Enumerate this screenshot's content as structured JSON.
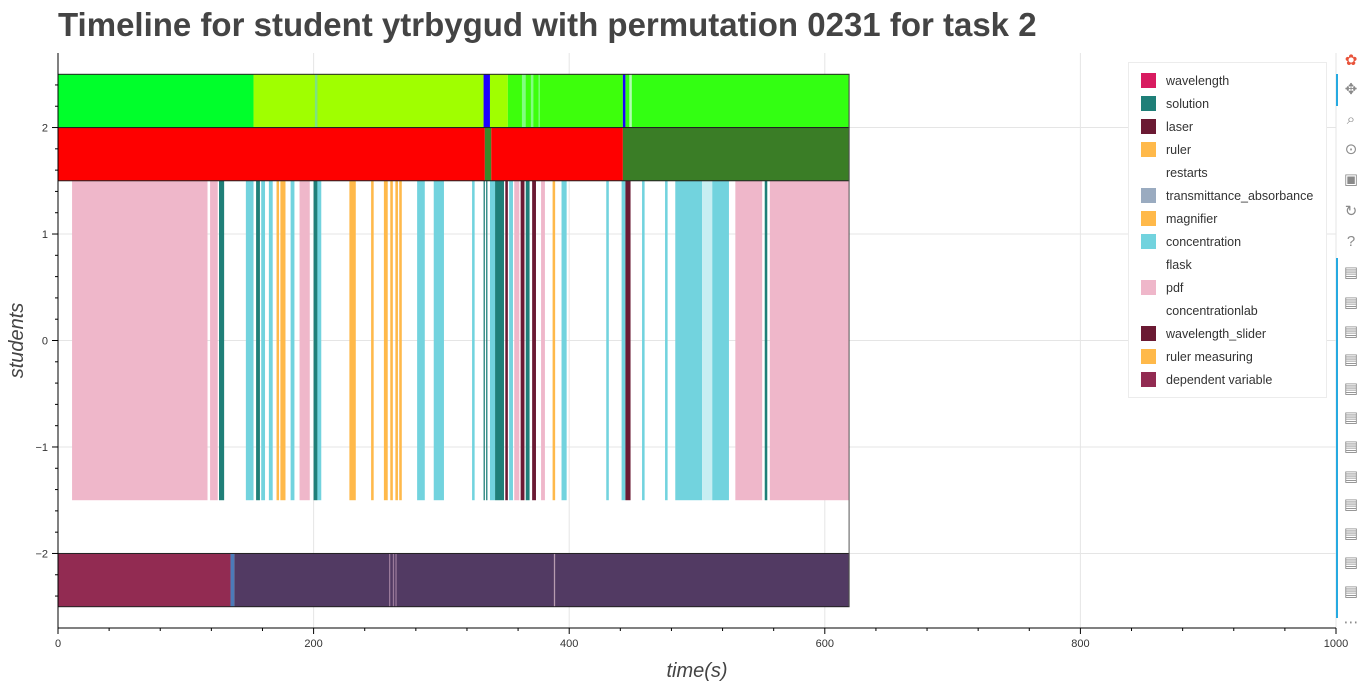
{
  "chart_data": {
    "type": "timeline",
    "title": "Timeline for student ytrbygud with permutation 0231 for task 2",
    "xlabel": "time(s)",
    "ylabel": "students",
    "xlim": [
      0,
      1000
    ],
    "ylim": [
      -2.7,
      2.7
    ],
    "x_ticks": [
      0,
      200,
      400,
      600,
      800,
      1000
    ],
    "y_ticks": [
      2,
      1,
      0,
      -1,
      -2
    ],
    "x_tick_labels": [
      "0",
      "200",
      "400",
      "600",
      "800",
      "1000"
    ],
    "y_tick_labels": [
      "2",
      "1",
      "0",
      "−1",
      "−2"
    ],
    "grid": true,
    "legend_position": "top-right",
    "legend": [
      {
        "label": "wavelength",
        "color": "#d81b60"
      },
      {
        "label": "solution",
        "color": "#1f7f78"
      },
      {
        "label": "laser",
        "color": "#6b1a33"
      },
      {
        "label": "ruler",
        "color": "#ffb94a"
      },
      {
        "label": "restarts",
        "color": "#ffffff"
      },
      {
        "label": "transmittance_absorbance",
        "color": "#9aabc0"
      },
      {
        "label": "magnifier",
        "color": "#ffb94a"
      },
      {
        "label": "concentration",
        "color": "#72d3de"
      },
      {
        "label": "flask",
        "color": "#ffffff"
      },
      {
        "label": "pdf",
        "color": "#efb7ca"
      },
      {
        "label": "concentrationlab",
        "color": "#ffffff"
      },
      {
        "label": "wavelength_slider",
        "color": "#6b1a33"
      },
      {
        "label": "ruler measuring",
        "color": "#ffb94a"
      },
      {
        "label": "dependent variable",
        "color": "#922b52"
      }
    ],
    "rows": [
      {
        "name": "top",
        "y_range": [
          2.0,
          2.5
        ],
        "segments": [
          {
            "x0": 0,
            "x1": 153,
            "color": "#00ff2b"
          },
          {
            "x0": 153,
            "x1": 333,
            "color": "#a0ff00"
          },
          {
            "x0": 333,
            "x1": 338,
            "color": "#1c00ff"
          },
          {
            "x0": 338,
            "x1": 352,
            "color": "#a0ff00"
          },
          {
            "x0": 352,
            "x1": 442,
            "color": "#3dff0c"
          },
          {
            "x0": 442,
            "x1": 444,
            "color": "#1c00ff"
          },
          {
            "x0": 444,
            "x1": 619,
            "color": "#33ff12"
          },
          {
            "x0": 201,
            "x1": 203,
            "color": "#7ee37e"
          },
          {
            "x0": 363,
            "x1": 366,
            "color": "#80ff80"
          },
          {
            "x0": 370,
            "x1": 372,
            "color": "#80ff80"
          },
          {
            "x0": 376,
            "x1": 377,
            "color": "#80ff80"
          },
          {
            "x0": 447,
            "x1": 449,
            "color": "#b0ffb0"
          }
        ]
      },
      {
        "name": "mid",
        "y_range": [
          1.5,
          2.0
        ],
        "segments": [
          {
            "x0": 0,
            "x1": 334,
            "color": "#fe0000"
          },
          {
            "x0": 334,
            "x1": 339,
            "color": "#3a8a2a"
          },
          {
            "x0": 339,
            "x1": 442,
            "color": "#fe0000"
          },
          {
            "x0": 442,
            "x1": 619,
            "color": "#3a7d26"
          }
        ]
      },
      {
        "name": "events",
        "y_range": [
          -1.5,
          1.5
        ],
        "segments": [
          {
            "x0": 11,
            "x1": 117,
            "color": "#efb7ca"
          },
          {
            "x0": 119,
            "x1": 125,
            "color": "#efb7ca"
          },
          {
            "x0": 126,
            "x1": 130,
            "color": "#1f7f78"
          },
          {
            "x0": 147,
            "x1": 153,
            "color": "#72d3de"
          },
          {
            "x0": 155,
            "x1": 158,
            "color": "#1f7f78"
          },
          {
            "x0": 159,
            "x1": 162,
            "color": "#72d3de"
          },
          {
            "x0": 165,
            "x1": 168,
            "color": "#72d3de"
          },
          {
            "x0": 171,
            "x1": 173,
            "color": "#ffb94a"
          },
          {
            "x0": 174,
            "x1": 178,
            "color": "#ffb94a"
          },
          {
            "x0": 182,
            "x1": 185,
            "color": "#72d3de"
          },
          {
            "x0": 189,
            "x1": 197,
            "color": "#efb7ca"
          },
          {
            "x0": 200,
            "x1": 203,
            "color": "#1f7f78"
          },
          {
            "x0": 203,
            "x1": 206,
            "color": "#72d3de"
          },
          {
            "x0": 228,
            "x1": 233,
            "color": "#ffb94a"
          },
          {
            "x0": 245,
            "x1": 247,
            "color": "#ffb94a"
          },
          {
            "x0": 255,
            "x1": 258,
            "color": "#ffb94a"
          },
          {
            "x0": 260,
            "x1": 262,
            "color": "#ffb94a"
          },
          {
            "x0": 264,
            "x1": 266,
            "color": "#ffb94a"
          },
          {
            "x0": 267,
            "x1": 269,
            "color": "#ffb94a"
          },
          {
            "x0": 281,
            "x1": 287,
            "color": "#72d3de"
          },
          {
            "x0": 294,
            "x1": 302,
            "color": "#72d3de"
          },
          {
            "x0": 324,
            "x1": 326,
            "color": "#72d3de"
          },
          {
            "x0": 333,
            "x1": 334,
            "color": "#1f7f78"
          },
          {
            "x0": 335,
            "x1": 336,
            "color": "#1f7f78"
          },
          {
            "x0": 338,
            "x1": 342,
            "color": "#72d3de"
          },
          {
            "x0": 342,
            "x1": 349,
            "color": "#1f7f78"
          },
          {
            "x0": 350,
            "x1": 352,
            "color": "#6b1a33"
          },
          {
            "x0": 353,
            "x1": 356,
            "color": "#72d3de"
          },
          {
            "x0": 357,
            "x1": 361,
            "color": "#efb7ca"
          },
          {
            "x0": 362,
            "x1": 365,
            "color": "#6b1a33"
          },
          {
            "x0": 366,
            "x1": 369,
            "color": "#1f7f78"
          },
          {
            "x0": 371,
            "x1": 374,
            "color": "#6b1a33"
          },
          {
            "x0": 378,
            "x1": 381,
            "color": "#efb7ca"
          },
          {
            "x0": 387,
            "x1": 389,
            "color": "#ffb94a"
          },
          {
            "x0": 394,
            "x1": 398,
            "color": "#72d3de"
          },
          {
            "x0": 429,
            "x1": 431,
            "color": "#72d3de"
          },
          {
            "x0": 441,
            "x1": 444,
            "color": "#72d3de"
          },
          {
            "x0": 444,
            "x1": 448,
            "color": "#6b1a33"
          },
          {
            "x0": 457,
            "x1": 459,
            "color": "#72d3de"
          },
          {
            "x0": 475,
            "x1": 477,
            "color": "#72d3de"
          },
          {
            "x0": 483,
            "x1": 504,
            "color": "#72d3de"
          },
          {
            "x0": 504,
            "x1": 513,
            "color": "#c8eef2"
          },
          {
            "x0": 512,
            "x1": 525,
            "color": "#72d3de"
          },
          {
            "x0": 530,
            "x1": 551,
            "color": "#efb7ca"
          },
          {
            "x0": 553,
            "x1": 555,
            "color": "#1f7f78"
          },
          {
            "x0": 557,
            "x1": 619,
            "color": "#efb7ca"
          }
        ]
      },
      {
        "name": "bottom",
        "y_range": [
          -2.5,
          -2.0
        ],
        "segments": [
          {
            "x0": 0,
            "x1": 135,
            "color": "#922b52"
          },
          {
            "x0": 135,
            "x1": 138,
            "color": "#4c7ab8"
          },
          {
            "x0": 138,
            "x1": 619,
            "color": "#523a63"
          },
          {
            "x0": 259,
            "x1": 260,
            "color": "#9a7a9a"
          },
          {
            "x0": 262,
            "x1": 263,
            "color": "#9a7a9a"
          },
          {
            "x0": 264,
            "x1": 265,
            "color": "#9a7a9a"
          },
          {
            "x0": 388,
            "x1": 389,
            "color": "#b79bb0"
          }
        ]
      }
    ]
  },
  "toolbar": {
    "accent_color": "#26aae1",
    "tools": [
      {
        "name": "bokeh-logo-icon",
        "glyph": "✿",
        "color": "#e8543c",
        "interactable": true
      },
      {
        "name": "pan-tool-icon",
        "glyph": "✥",
        "color": "#8a8a8a",
        "interactable": true
      },
      {
        "name": "box-zoom-tool-icon",
        "glyph": "⌕",
        "color": "#8a8a8a",
        "interactable": true
      },
      {
        "name": "wheel-zoom-tool-icon",
        "glyph": "⊙",
        "color": "#8a8a8a",
        "interactable": true
      },
      {
        "name": "save-tool-icon",
        "glyph": "▣",
        "color": "#8a8a8a",
        "interactable": true
      },
      {
        "name": "reset-tool-icon",
        "glyph": "↻",
        "color": "#8a8a8a",
        "interactable": true
      },
      {
        "name": "help-tool-icon",
        "glyph": "?",
        "color": "#8a8a8a",
        "interactable": true
      },
      {
        "name": "hover-tool-icon",
        "glyph": "▤",
        "color": "#8a8a8a",
        "interactable": true
      },
      {
        "name": "hover-tool-icon",
        "glyph": "▤",
        "color": "#8a8a8a",
        "interactable": true
      },
      {
        "name": "hover-tool-icon",
        "glyph": "▤",
        "color": "#8a8a8a",
        "interactable": true
      },
      {
        "name": "hover-tool-icon",
        "glyph": "▤",
        "color": "#8a8a8a",
        "interactable": true
      },
      {
        "name": "hover-tool-icon",
        "glyph": "▤",
        "color": "#8a8a8a",
        "interactable": true
      },
      {
        "name": "hover-tool-icon",
        "glyph": "▤",
        "color": "#8a8a8a",
        "interactable": true
      },
      {
        "name": "hover-tool-icon",
        "glyph": "▤",
        "color": "#8a8a8a",
        "interactable": true
      },
      {
        "name": "hover-tool-icon",
        "glyph": "▤",
        "color": "#8a8a8a",
        "interactable": true
      },
      {
        "name": "hover-tool-icon",
        "glyph": "▤",
        "color": "#8a8a8a",
        "interactable": true
      },
      {
        "name": "hover-tool-icon",
        "glyph": "▤",
        "color": "#8a8a8a",
        "interactable": true
      },
      {
        "name": "hover-tool-icon",
        "glyph": "▤",
        "color": "#8a8a8a",
        "interactable": true
      },
      {
        "name": "hover-tool-icon",
        "glyph": "▤",
        "color": "#8a8a8a",
        "interactable": true
      },
      {
        "name": "more-tools-icon",
        "glyph": "⋯",
        "color": "#8a8a8a",
        "interactable": true
      }
    ]
  }
}
